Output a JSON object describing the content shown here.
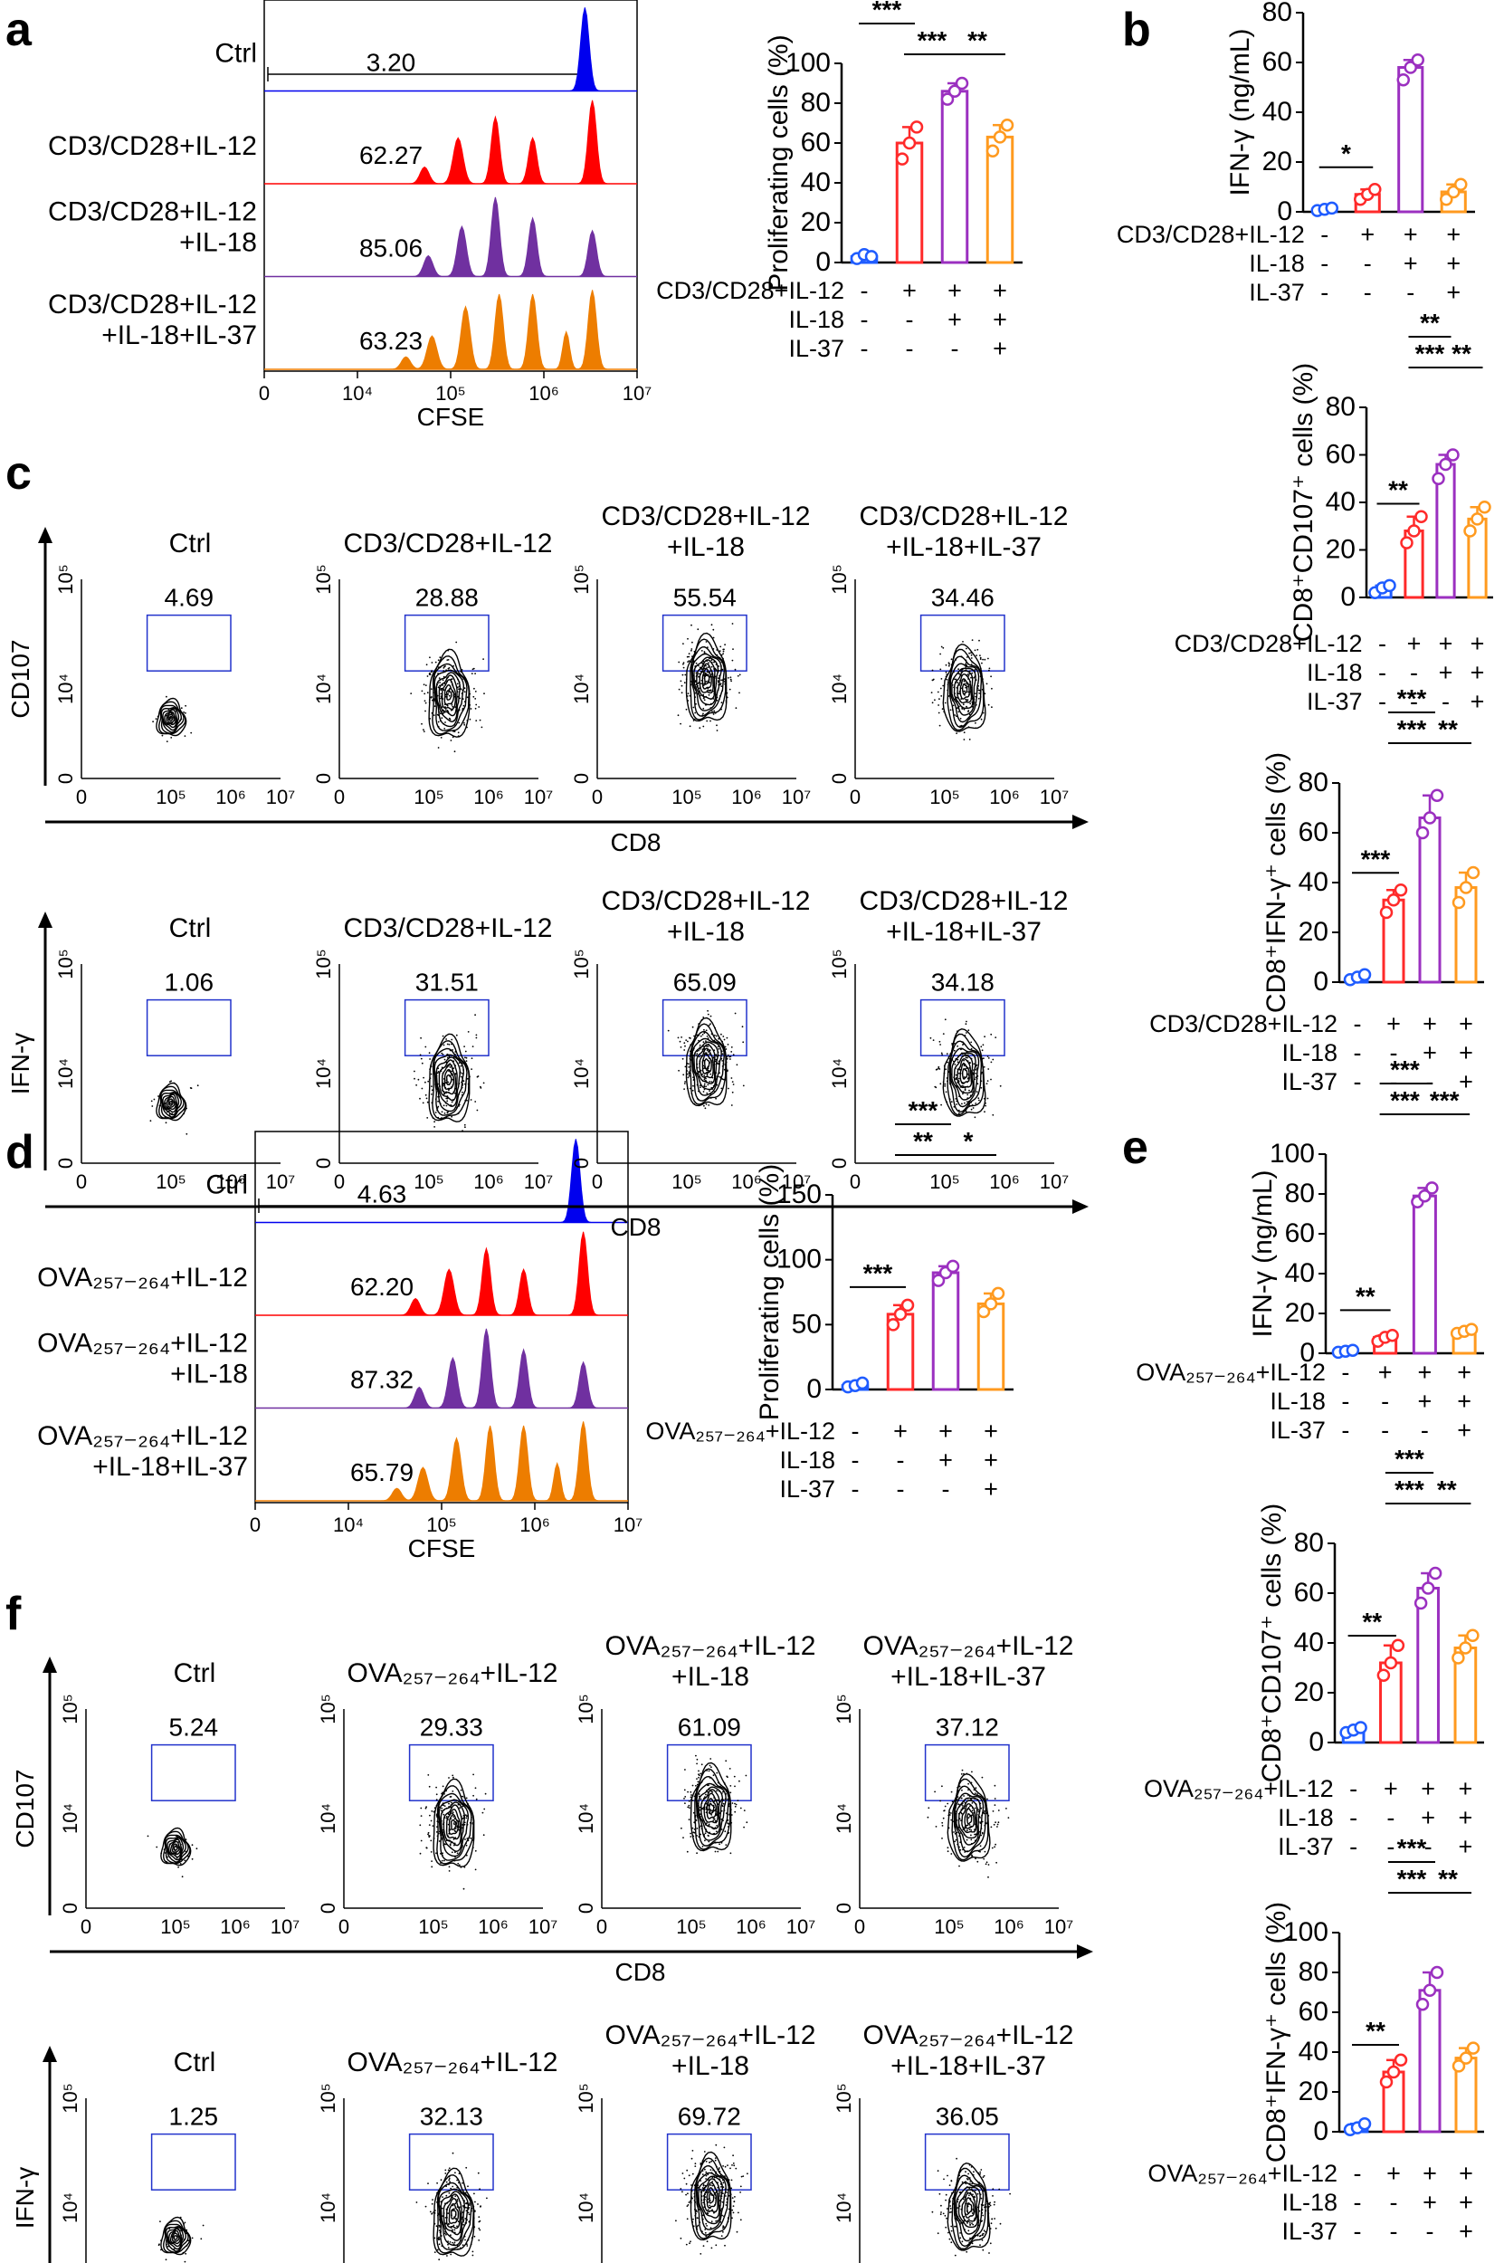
{
  "figure": {
    "panel_letters": [
      "a",
      "b",
      "c",
      "d",
      "e",
      "f"
    ],
    "colors": {
      "ctrl": "#0000ee",
      "il12": "#ff0000",
      "il18": "#7030a0",
      "il37": "#ed7d00",
      "gate": "#2233cc",
      "bar_ctrl": "#1f5cff",
      "bar_il12": "#ff2a2a",
      "bar_il18": "#9b30c0",
      "bar_il37": "#ff9a1f"
    }
  },
  "panel_a": {
    "letter": "a",
    "histogram": {
      "rows": [
        {
          "label_lines": [
            "Ctrl"
          ],
          "value": "3.20",
          "color_key": "ctrl"
        },
        {
          "label_lines": [
            "CD3/CD28+IL-12"
          ],
          "value": "62.27",
          "color_key": "il12"
        },
        {
          "label_lines": [
            "CD3/CD28+IL-12",
            "+IL-18"
          ],
          "value": "85.06",
          "color_key": "il18"
        },
        {
          "label_lines": [
            "CD3/CD28+IL-12",
            "+IL-18+IL-37"
          ],
          "value": "63.23",
          "color_key": "il37"
        }
      ],
      "xlabel": "CFSE",
      "ticks": [
        "0",
        "10⁴",
        "10⁵",
        "10⁶",
        "10⁷"
      ]
    }
  },
  "panel_c": {
    "letter": "c",
    "rows": [
      {
        "ylabel": "CD107",
        "xlabel": "CD8",
        "plots": [
          {
            "title_lines": [
              "Ctrl"
            ],
            "value": "4.69"
          },
          {
            "title_lines": [
              "CD3/CD28+IL-12"
            ],
            "value": "28.88"
          },
          {
            "title_lines": [
              "CD3/CD28+IL-12",
              "+IL-18"
            ],
            "value": "55.54"
          },
          {
            "title_lines": [
              "CD3/CD28+IL-12",
              "+IL-18+IL-37"
            ],
            "value": "34.46"
          }
        ]
      },
      {
        "ylabel": "IFN-γ",
        "xlabel": "CD8",
        "plots": [
          {
            "title_lines": [
              "Ctrl"
            ],
            "value": "1.06"
          },
          {
            "title_lines": [
              "CD3/CD28+IL-12"
            ],
            "value": "31.51"
          },
          {
            "title_lines": [
              "CD3/CD28+IL-12",
              "+IL-18"
            ],
            "value": "65.09"
          },
          {
            "title_lines": [
              "CD3/CD28+IL-12",
              "+IL-18+IL-37"
            ],
            "value": "34.18"
          }
        ]
      }
    ],
    "xticks": [
      "0",
      "10⁵",
      "10⁶",
      "10⁷"
    ],
    "yticks": [
      "0",
      "10⁴",
      "10⁵"
    ]
  },
  "panel_d": {
    "letter": "d",
    "histogram": {
      "rows": [
        {
          "label_lines": [
            "Ctrl"
          ],
          "value": "4.63",
          "color_key": "ctrl"
        },
        {
          "label_lines": [
            "OVA₂₅₇₋₂₆₄+IL-12"
          ],
          "value": "62.20",
          "color_key": "il12"
        },
        {
          "label_lines": [
            "OVA₂₅₇₋₂₆₄+IL-12",
            "+IL-18"
          ],
          "value": "87.32",
          "color_key": "il18"
        },
        {
          "label_lines": [
            "OVA₂₅₇₋₂₆₄+IL-12",
            "+IL-18+IL-37"
          ],
          "value": "65.79",
          "color_key": "il37"
        }
      ],
      "xlabel": "CFSE",
      "ticks": [
        "0",
        "10⁴",
        "10⁵",
        "10⁶",
        "10⁷"
      ]
    }
  },
  "panel_f": {
    "letter": "f",
    "rows": [
      {
        "ylabel": "CD107",
        "xlabel": "CD8",
        "plots": [
          {
            "title_lines": [
              "Ctrl"
            ],
            "value": "5.24"
          },
          {
            "title_lines": [
              "OVA₂₅₇₋₂₆₄+IL-12"
            ],
            "value": "29.33"
          },
          {
            "title_lines": [
              "OVA₂₅₇₋₂₆₄+IL-12",
              "+IL-18"
            ],
            "value": "61.09"
          },
          {
            "title_lines": [
              "OVA₂₅₇₋₂₆₄+IL-12",
              "+IL-18+IL-37"
            ],
            "value": "37.12"
          }
        ]
      },
      {
        "ylabel": "IFN-γ",
        "xlabel": "CD8",
        "plots": [
          {
            "title_lines": [
              "Ctrl"
            ],
            "value": "1.25"
          },
          {
            "title_lines": [
              "OVA₂₅₇₋₂₆₄+IL-12"
            ],
            "value": "32.13"
          },
          {
            "title_lines": [
              "OVA₂₅₇₋₂₆₄+IL-12",
              "+IL-18"
            ],
            "value": "69.72"
          },
          {
            "title_lines": [
              "OVA₂₅₇₋₂₆₄+IL-12",
              "+IL-18+IL-37"
            ],
            "value": "36.05"
          }
        ]
      }
    ],
    "xticks": [
      "0",
      "10⁵",
      "10⁶",
      "10⁷"
    ],
    "yticks": [
      "0",
      "10⁴",
      "10⁵"
    ]
  },
  "chart_data": [
    {
      "id": "a-bar",
      "type": "bar",
      "ylabel": "Proliferating cells (%)",
      "ylim": [
        0,
        100
      ],
      "yticks": [
        0,
        20,
        40,
        60,
        80,
        100
      ],
      "values": [
        3,
        60,
        86,
        63
      ],
      "points": [
        [
          2,
          4,
          3
        ],
        [
          52,
          60,
          68
        ],
        [
          82,
          86,
          90
        ],
        [
          56,
          63,
          69
        ]
      ],
      "sig": [
        {
          "from": 1,
          "to": 2,
          "label": "**",
          "level": 2
        },
        {
          "from": 0,
          "to": 1,
          "label": "***",
          "level": 1
        },
        {
          "from": 1,
          "to": 2,
          "label": "***",
          "level": 0
        },
        {
          "from": 2,
          "to": 3,
          "label": "**",
          "level": 0
        }
      ],
      "treatments": [
        {
          "name": "CD3/CD28+IL-12",
          "signs": [
            "-",
            "+",
            "+",
            "+"
          ]
        },
        {
          "name": "IL-18",
          "signs": [
            "-",
            "-",
            "+",
            "+"
          ]
        },
        {
          "name": "IL-37",
          "signs": [
            "-",
            "-",
            "-",
            "+"
          ]
        }
      ]
    },
    {
      "id": "b-bar",
      "type": "bar",
      "ylabel": "IFN-γ (ng/mL)",
      "ylim": [
        0,
        80
      ],
      "yticks": [
        0,
        20,
        40,
        60,
        80
      ],
      "values": [
        1,
        7,
        58,
        8
      ],
      "points": [
        [
          0.5,
          1,
          1.5
        ],
        [
          5,
          7,
          9
        ],
        [
          53,
          58,
          61
        ],
        [
          5,
          8,
          11
        ]
      ],
      "sig": [
        {
          "from": 0,
          "to": 1,
          "label": "*",
          "level": 0
        },
        {
          "from": 1,
          "to": 2,
          "label": "***",
          "level": 2
        },
        {
          "from": 1,
          "to": 2,
          "label": "***",
          "level": 1
        },
        {
          "from": 2,
          "to": 3,
          "label": "***",
          "level": 1
        }
      ],
      "treatments": [
        {
          "name": "CD3/CD28+IL-12",
          "signs": [
            "-",
            "+",
            "+",
            "+"
          ]
        },
        {
          "name": "IL-18",
          "signs": [
            "-",
            "-",
            "+",
            "+"
          ]
        },
        {
          "name": "IL-37",
          "signs": [
            "-",
            "-",
            "-",
            "+"
          ]
        }
      ]
    },
    {
      "id": "c-bar1",
      "type": "bar",
      "ylabel": "CD8⁺CD107⁺ cells (%)",
      "ylim": [
        0,
        80
      ],
      "yticks": [
        0,
        20,
        40,
        60,
        80
      ],
      "values": [
        4,
        28,
        56,
        33
      ],
      "points": [
        [
          2,
          4,
          5
        ],
        [
          23,
          28,
          34
        ],
        [
          50,
          56,
          60
        ],
        [
          28,
          33,
          38
        ]
      ],
      "sig": [
        {
          "from": 0,
          "to": 1,
          "label": "**",
          "level": 0
        },
        {
          "from": 1,
          "to": 2,
          "label": "**",
          "level": 2
        },
        {
          "from": 1,
          "to": 2,
          "label": "***",
          "level": 1
        },
        {
          "from": 2,
          "to": 3,
          "label": "**",
          "level": 1
        }
      ],
      "treatments": [
        {
          "name": "CD3/CD28+IL-12",
          "signs": [
            "-",
            "+",
            "+",
            "+"
          ]
        },
        {
          "name": "IL-18",
          "signs": [
            "-",
            "-",
            "+",
            "+"
          ]
        },
        {
          "name": "IL-37",
          "signs": [
            "-",
            "-",
            "-",
            "+"
          ]
        }
      ]
    },
    {
      "id": "c-bar2",
      "type": "bar",
      "ylabel": "CD8⁺IFN-γ⁺ cells (%)",
      "ylim": [
        0,
        80
      ],
      "yticks": [
        0,
        20,
        40,
        60,
        80
      ],
      "values": [
        2,
        33,
        66,
        38
      ],
      "points": [
        [
          1,
          2,
          3
        ],
        [
          28,
          33,
          37
        ],
        [
          60,
          66,
          75
        ],
        [
          32,
          38,
          44
        ]
      ],
      "sig": [
        {
          "from": 0,
          "to": 1,
          "label": "***",
          "level": 0
        },
        {
          "from": 1,
          "to": 2,
          "label": "***",
          "level": 2
        },
        {
          "from": 1,
          "to": 2,
          "label": "***",
          "level": 1
        },
        {
          "from": 2,
          "to": 3,
          "label": "**",
          "level": 1
        }
      ],
      "treatments": [
        {
          "name": "CD3/CD28+IL-12",
          "signs": [
            "-",
            "+",
            "+",
            "+"
          ]
        },
        {
          "name": "IL-18",
          "signs": [
            "-",
            "-",
            "+",
            "+"
          ]
        },
        {
          "name": "IL-37",
          "signs": [
            "-",
            "-",
            "-",
            "+"
          ]
        }
      ]
    },
    {
      "id": "d-bar",
      "type": "bar",
      "ylabel": "Proliferating cells (%)",
      "ylim": [
        0,
        150
      ],
      "yticks": [
        0,
        50,
        100,
        150
      ],
      "values": [
        3,
        58,
        90,
        66
      ],
      "points": [
        [
          2,
          3,
          5
        ],
        [
          50,
          58,
          65
        ],
        [
          84,
          90,
          95
        ],
        [
          60,
          66,
          74
        ]
      ],
      "sig": [
        {
          "from": 1,
          "to": 2,
          "label": "***",
          "level": 2
        },
        {
          "from": 0,
          "to": 1,
          "label": "***",
          "level": 0
        },
        {
          "from": 1,
          "to": 2,
          "label": "**",
          "level": 1
        },
        {
          "from": 2,
          "to": 3,
          "label": "*",
          "level": 1
        }
      ],
      "treatments": [
        {
          "name": "OVA₂₅₇₋₂₆₄+IL-12",
          "signs": [
            "-",
            "+",
            "+",
            "+"
          ]
        },
        {
          "name": "IL-18",
          "signs": [
            "-",
            "-",
            "+",
            "+"
          ]
        },
        {
          "name": "IL-37",
          "signs": [
            "-",
            "-",
            "-",
            "+"
          ]
        }
      ]
    },
    {
      "id": "e-bar",
      "type": "bar",
      "ylabel": "IFN-γ (ng/mL)",
      "ylim": [
        0,
        100
      ],
      "yticks": [
        0,
        20,
        40,
        60,
        80,
        100
      ],
      "values": [
        1,
        8,
        79,
        11
      ],
      "points": [
        [
          0.5,
          1,
          1.5
        ],
        [
          6,
          8,
          9
        ],
        [
          76,
          79,
          83
        ],
        [
          10,
          11,
          12
        ]
      ],
      "sig": [
        {
          "from": 0,
          "to": 1,
          "label": "**",
          "level": 0
        },
        {
          "from": 1,
          "to": 2,
          "label": "***",
          "level": 2
        },
        {
          "from": 1,
          "to": 2,
          "label": "***",
          "level": 1
        },
        {
          "from": 2,
          "to": 3,
          "label": "***",
          "level": 1
        }
      ],
      "treatments": [
        {
          "name": "OVA₂₅₇₋₂₆₄+IL-12",
          "signs": [
            "-",
            "+",
            "+",
            "+"
          ]
        },
        {
          "name": "IL-18",
          "signs": [
            "-",
            "-",
            "+",
            "+"
          ]
        },
        {
          "name": "IL-37",
          "signs": [
            "-",
            "-",
            "-",
            "+"
          ]
        }
      ]
    },
    {
      "id": "f-bar1",
      "type": "bar",
      "ylabel": "CD8⁺CD107⁺ cells (%)",
      "ylim": [
        0,
        80
      ],
      "yticks": [
        0,
        20,
        40,
        60,
        80
      ],
      "values": [
        5,
        32,
        62,
        38
      ],
      "points": [
        [
          4,
          5,
          6
        ],
        [
          27,
          32,
          39
        ],
        [
          56,
          62,
          68
        ],
        [
          34,
          38,
          43
        ]
      ],
      "sig": [
        {
          "from": 0,
          "to": 1,
          "label": "**",
          "level": 0
        },
        {
          "from": 1,
          "to": 2,
          "label": "***",
          "level": 2
        },
        {
          "from": 1,
          "to": 2,
          "label": "***",
          "level": 1
        },
        {
          "from": 2,
          "to": 3,
          "label": "**",
          "level": 1
        }
      ],
      "treatments": [
        {
          "name": "OVA₂₅₇₋₂₆₄+IL-12",
          "signs": [
            "-",
            "+",
            "+",
            "+"
          ]
        },
        {
          "name": "IL-18",
          "signs": [
            "-",
            "-",
            "+",
            "+"
          ]
        },
        {
          "name": "IL-37",
          "signs": [
            "-",
            "-",
            "-",
            "+"
          ]
        }
      ]
    },
    {
      "id": "f-bar2",
      "type": "bar",
      "ylabel": "CD8⁺IFN-γ⁺ cells (%)",
      "ylim": [
        0,
        100
      ],
      "yticks": [
        0,
        20,
        40,
        60,
        80,
        100
      ],
      "values": [
        2,
        30,
        71,
        37
      ],
      "points": [
        [
          1,
          2,
          4
        ],
        [
          25,
          30,
          36
        ],
        [
          64,
          71,
          80
        ],
        [
          33,
          37,
          42
        ]
      ],
      "sig": [
        {
          "from": 0,
          "to": 1,
          "label": "**",
          "level": 0
        },
        {
          "from": 1,
          "to": 2,
          "label": "***",
          "level": 2
        },
        {
          "from": 1,
          "to": 2,
          "label": "***",
          "level": 1
        },
        {
          "from": 2,
          "to": 3,
          "label": "**",
          "level": 1
        }
      ],
      "treatments": [
        {
          "name": "OVA₂₅₇₋₂₆₄+IL-12",
          "signs": [
            "-",
            "+",
            "+",
            "+"
          ]
        },
        {
          "name": "IL-18",
          "signs": [
            "-",
            "-",
            "+",
            "+"
          ]
        },
        {
          "name": "IL-37",
          "signs": [
            "-",
            "-",
            "-",
            "+"
          ]
        }
      ]
    }
  ]
}
